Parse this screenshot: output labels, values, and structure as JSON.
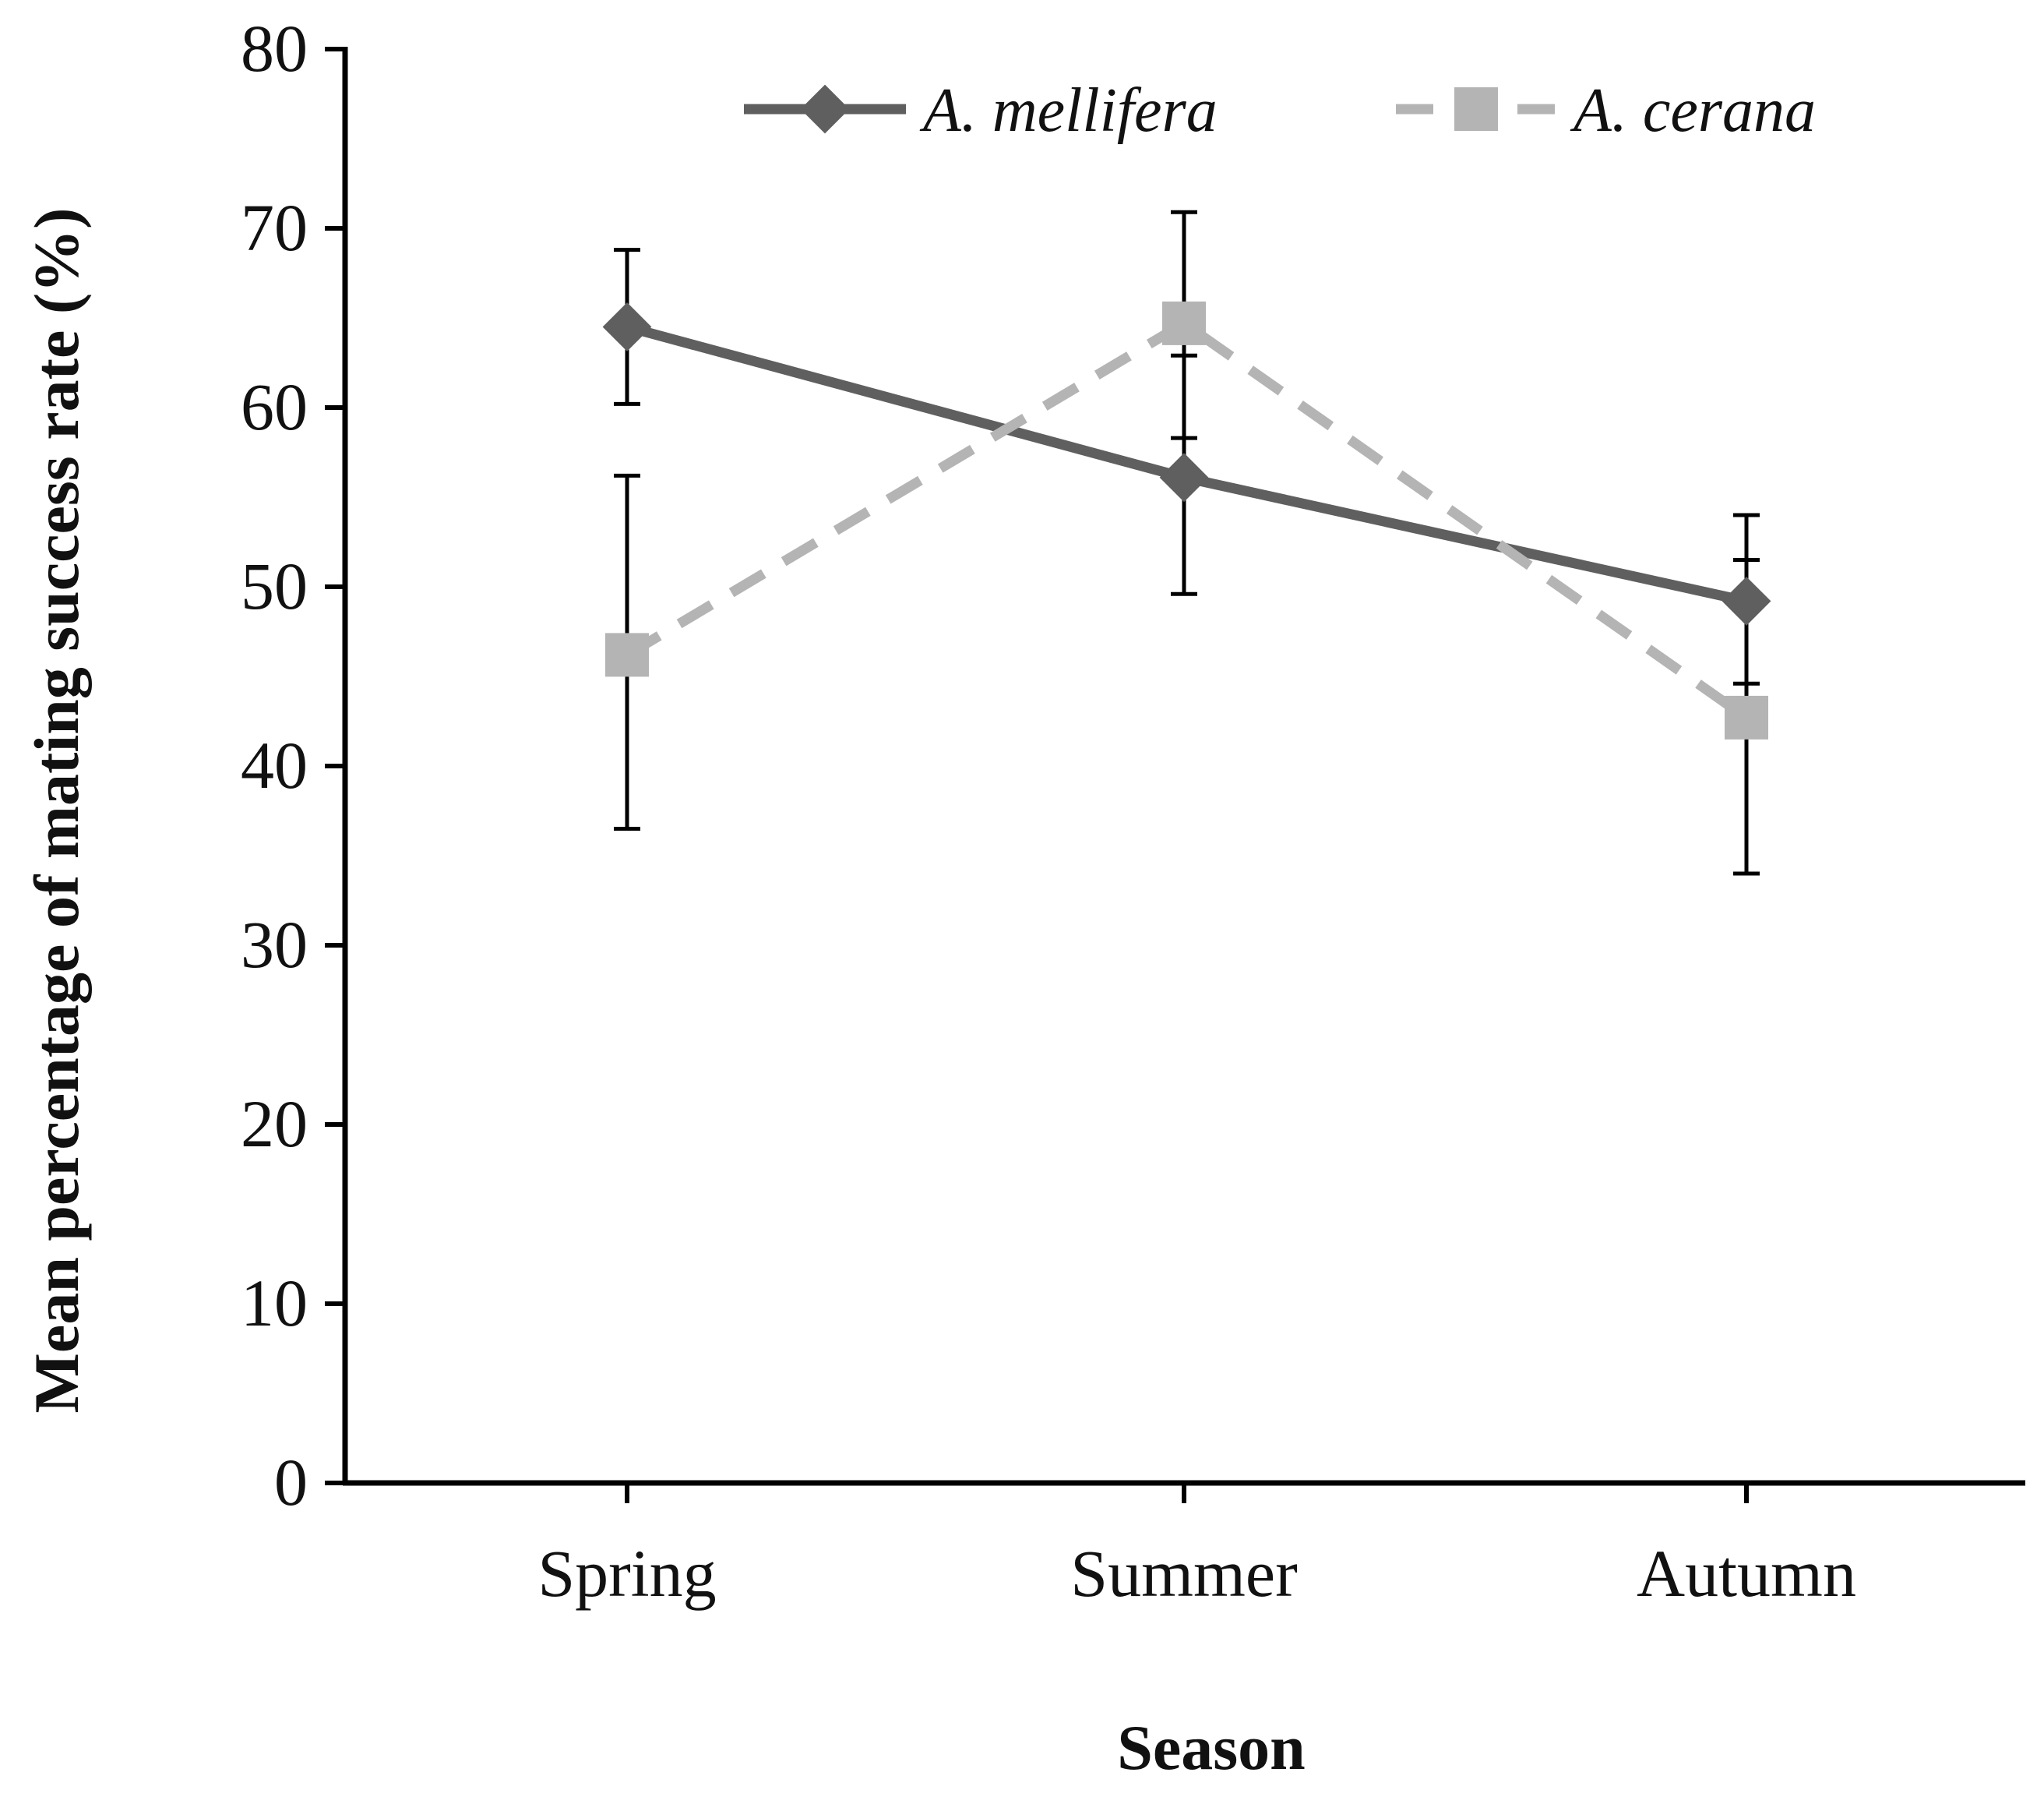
{
  "chart_data": {
    "type": "line",
    "title": "",
    "xlabel": "Season",
    "ylabel": "Mean percentage of mating success rate (%)",
    "categories": [
      "Spring",
      "Summer",
      "Autumn"
    ],
    "ylim": [
      0,
      80
    ],
    "yticks": [
      0,
      10,
      20,
      30,
      40,
      50,
      60,
      70,
      80
    ],
    "grid": false,
    "legend_position": "top-right",
    "series": [
      {
        "name": "A. mellifera",
        "values": [
          64.5,
          56.1,
          49.2
        ],
        "error_low": [
          60.2,
          49.6,
          44.6
        ],
        "error_high": [
          68.8,
          62.9,
          54.0
        ],
        "line_style": "solid",
        "marker": "diamond",
        "color": "#5f5f5f"
      },
      {
        "name": "A. cerana",
        "values": [
          46.2,
          64.7,
          42.7
        ],
        "error_low": [
          36.5,
          58.3,
          34.0
        ],
        "error_high": [
          56.2,
          70.9,
          51.5
        ],
        "line_style": "dashed",
        "marker": "square",
        "color": "#b4b4b4"
      }
    ]
  }
}
